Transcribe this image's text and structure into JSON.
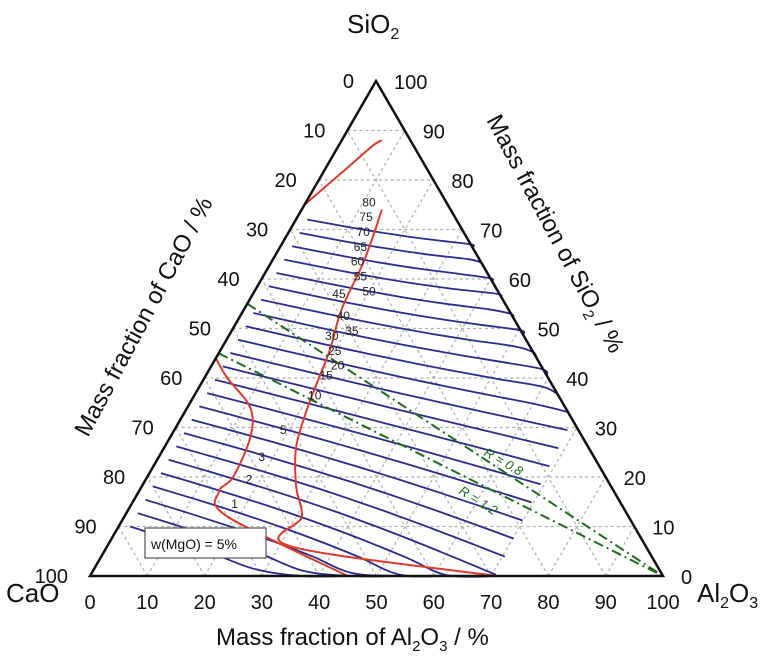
{
  "chart_data": {
    "type": "ternary",
    "vertices": {
      "top": {
        "name": "SiO",
        "sub": "2"
      },
      "left": {
        "name": "CaO"
      },
      "right": {
        "name": "Al",
        "sub1": "2",
        "mid": "O",
        "sub2": "3"
      }
    },
    "axis_titles": {
      "bottom": {
        "pre": "Mass fraction of Al",
        "s1": "2",
        "mid": "O",
        "s2": "3",
        "post": " / %"
      },
      "left": "Mass fraction of CaO / %",
      "right": {
        "pre": "Mass fraction of SiO",
        "s": "2",
        "post": " / %"
      }
    },
    "ticks": [
      "0",
      "10",
      "20",
      "30",
      "40",
      "50",
      "60",
      "70",
      "80",
      "90",
      "100"
    ],
    "grid": true,
    "legend_box": "w(MgO) = 5%",
    "iso_labels": [
      "80",
      "75",
      "70",
      "65",
      "60",
      "55",
      "50",
      "45",
      "40",
      "35",
      "30",
      "25",
      "20",
      "15",
      "10",
      "5",
      "3",
      "2",
      "1"
    ],
    "iso_label_positions": [
      {
        "label": "80",
        "sio2": 75.5,
        "al2o3": 11
      },
      {
        "label": "75",
        "sio2": 72.5,
        "al2o3": 12
      },
      {
        "label": "70",
        "sio2": 69.5,
        "al2o3": 13
      },
      {
        "label": "65",
        "sio2": 66.5,
        "al2o3": 14
      },
      {
        "label": "60",
        "sio2": 63.5,
        "al2o3": 15
      },
      {
        "label": "55",
        "sio2": 60.5,
        "al2o3": 17
      },
      {
        "label": "50",
        "sio2": 57.5,
        "al2o3": 20
      },
      {
        "label": "45",
        "sio2": 57.0,
        "al2o3": 15
      },
      {
        "label": "40",
        "sio2": 52.5,
        "al2o3": 18
      },
      {
        "label": "35",
        "sio2": 49.5,
        "al2o3": 21
      },
      {
        "label": "30",
        "sio2": 48.5,
        "al2o3": 18
      },
      {
        "label": "25",
        "sio2": 45.5,
        "al2o3": 20
      },
      {
        "label": "20",
        "sio2": 42.5,
        "al2o3": 22
      },
      {
        "label": "15",
        "sio2": 40.5,
        "al2o3": 21
      },
      {
        "label": "10",
        "sio2": 36.5,
        "al2o3": 21
      },
      {
        "label": "5",
        "sio2": 29.5,
        "al2o3": 19
      },
      {
        "label": "3",
        "sio2": 24.0,
        "al2o3": 18
      },
      {
        "label": "2",
        "sio2": 19.5,
        "al2o3": 18
      },
      {
        "label": "1",
        "sio2": 14.5,
        "al2o3": 18
      }
    ],
    "ratio_lines": [
      {
        "label": "R = 0.8",
        "start": {
          "sio2": 55,
          "al2o3": 0
        },
        "end": {
          "sio2": 0,
          "al2o3": 100
        }
      },
      {
        "label": "R = 1.2",
        "start": {
          "sio2": 45,
          "al2o3": 0
        },
        "end": {
          "sio2": 0,
          "al2o3": 100
        }
      }
    ],
    "isoline_count": 24,
    "colors": {
      "isoline": "#2b2b8c",
      "boundary": "#e03a2a",
      "ratio": "#1f6b1f",
      "grid": "#b0b0b0",
      "frame": "#111111"
    }
  }
}
